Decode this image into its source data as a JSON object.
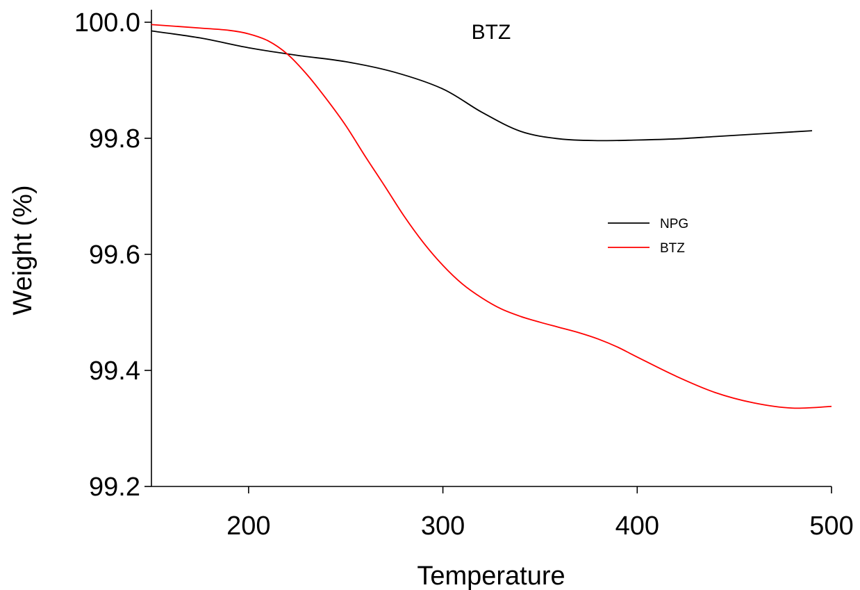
{
  "chart_data": {
    "type": "line",
    "title": "BTZ",
    "xlabel": "Temperature",
    "ylabel": "Weight (%)",
    "xlim": [
      150,
      500
    ],
    "ylim": [
      99.2,
      100.0
    ],
    "xticks": [
      200,
      300,
      400,
      500
    ],
    "xtick_labels": [
      "200",
      "300",
      "400",
      "500"
    ],
    "yticks": [
      99.2,
      99.4,
      99.6,
      99.8,
      100.0
    ],
    "ytick_labels": [
      "99.2",
      "99.4",
      "99.6",
      "99.8",
      "100.0"
    ],
    "grid": false,
    "legend_position": "right",
    "series": [
      {
        "name": "NPG",
        "color": "#000000",
        "x": [
          150,
          175,
          200,
          225,
          250,
          275,
          300,
          320,
          340,
          360,
          380,
          400,
          420,
          440,
          460,
          480,
          490
        ],
        "y": [
          99.985,
          99.973,
          99.956,
          99.943,
          99.932,
          99.914,
          99.885,
          99.845,
          99.812,
          99.799,
          99.796,
          99.797,
          99.799,
          99.803,
          99.807,
          99.811,
          99.813
        ]
      },
      {
        "name": "BTZ",
        "color": "#ff0000",
        "x": [
          150,
          175,
          190,
          200,
          210,
          220,
          230,
          240,
          250,
          260,
          270,
          280,
          290,
          300,
          310,
          320,
          330,
          340,
          350,
          360,
          370,
          380,
          390,
          400,
          420,
          440,
          460,
          480,
          500
        ],
        "y": [
          99.996,
          99.99,
          99.986,
          99.98,
          99.968,
          99.945,
          99.91,
          99.868,
          99.822,
          99.769,
          99.718,
          99.666,
          99.62,
          99.581,
          99.549,
          99.525,
          99.506,
          99.493,
          99.483,
          99.474,
          99.465,
          99.454,
          99.44,
          99.423,
          99.39,
          99.362,
          99.344,
          99.335,
          99.338
        ]
      }
    ]
  }
}
